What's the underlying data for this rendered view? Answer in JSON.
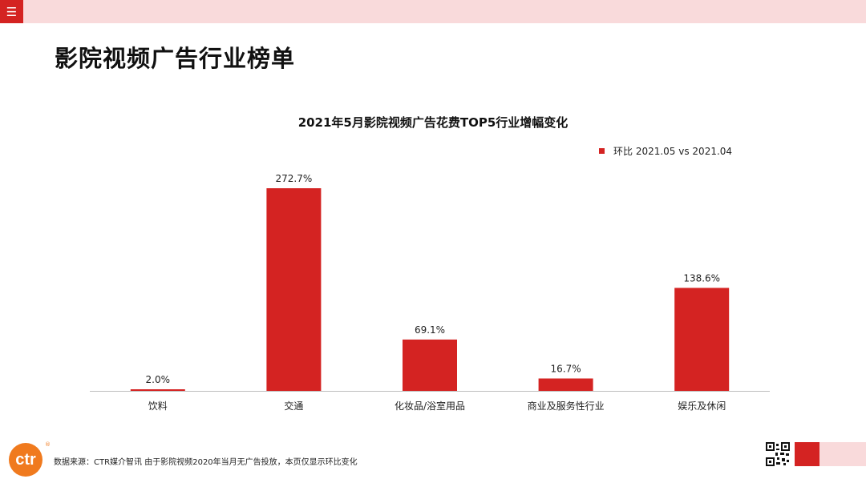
{
  "header": {
    "menu_icon": "hamburger-menu-icon",
    "page_title": "影院视频广告行业榜单"
  },
  "colors": {
    "accent": "#d42322",
    "accent_light": "#f9dadb",
    "logo": "#f07a1e"
  },
  "chart_data": {
    "type": "bar",
    "title": "2021年5月影院视频广告花费TOP5行业增幅变化",
    "categories": [
      "饮料",
      "交通",
      "化妆品/浴室用品",
      "商业及服务性行业",
      "娱乐及休闲"
    ],
    "series": [
      {
        "name": "环比 2021.05 vs 2021.04",
        "values": [
          2.0,
          272.7,
          69.1,
          16.7,
          138.6
        ],
        "labels": [
          "2.0%",
          "272.7%",
          "69.1%",
          "16.7%",
          "138.6%"
        ],
        "color": "#d42322"
      }
    ],
    "xlabel": "",
    "ylabel": "",
    "ylim": [
      0,
      272.7
    ],
    "grid": false,
    "legend": "top-right",
    "y_axis_visible": false
  },
  "footer": {
    "logo_text": "ctr",
    "logo_mark": "®",
    "source_text": "数据来源：CTR媒介智讯   由于影院视频2020年当月无广告投放，本页仅显示环比变化",
    "qr_icon": "qr-code-icon"
  }
}
